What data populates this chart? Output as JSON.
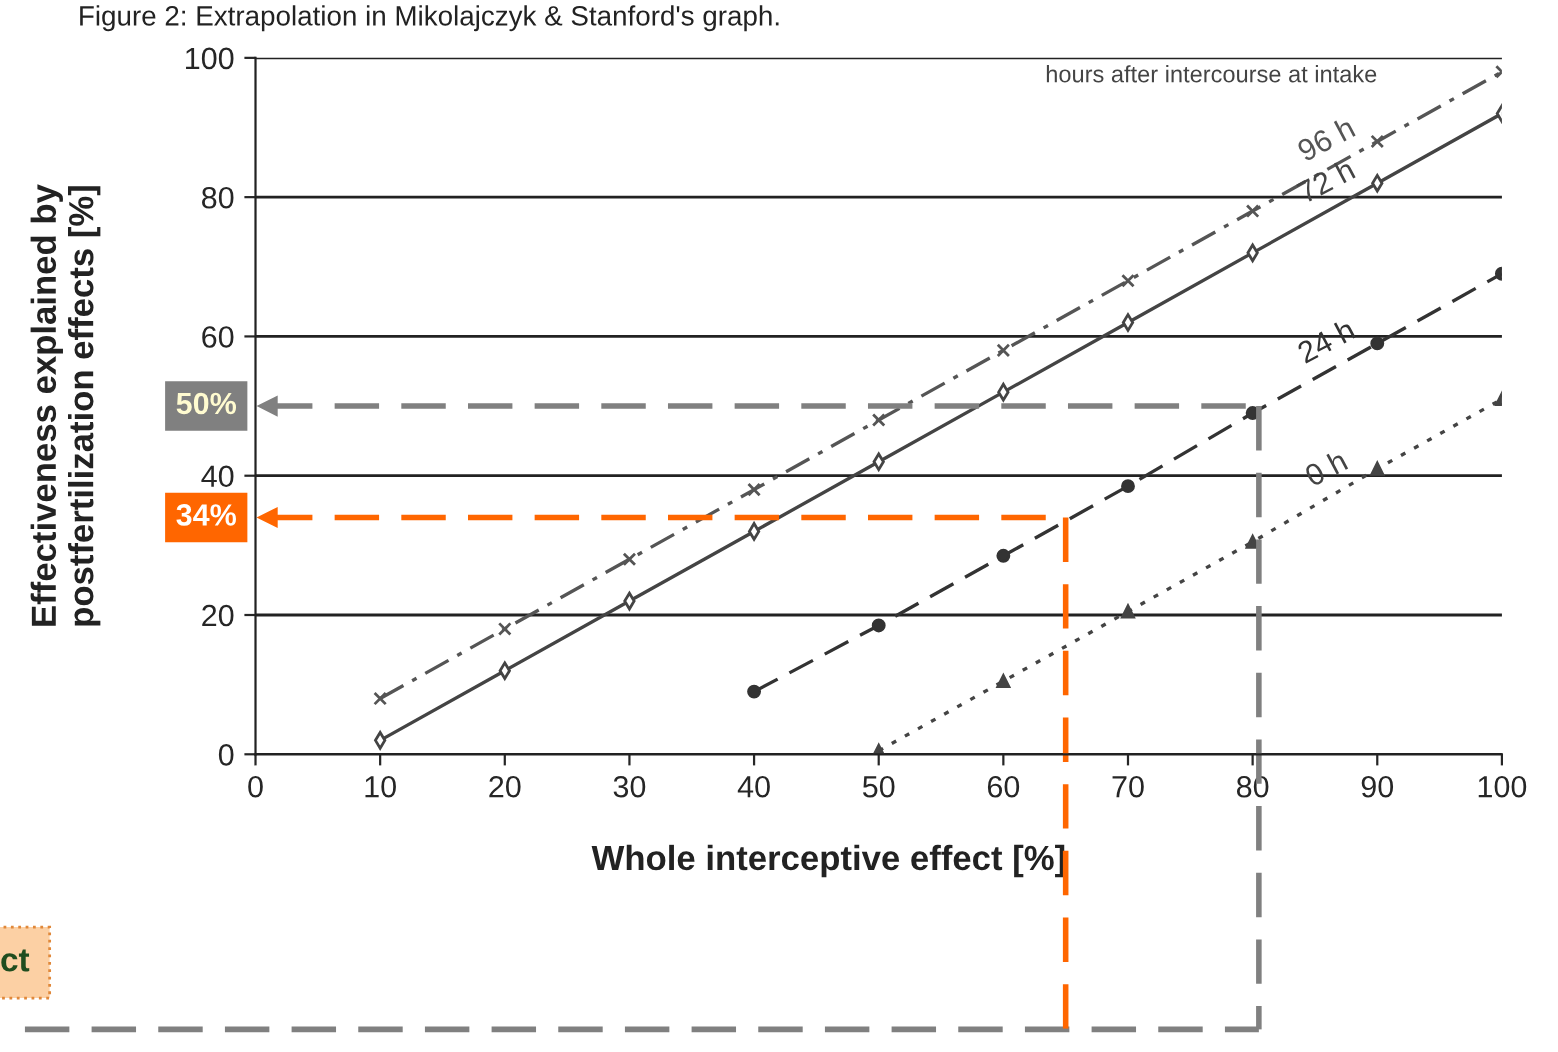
{
  "chart_data": {
    "type": "line",
    "title": "Figure 2: Extrapolation in Mikolajczyk & Stanford's graph.",
    "xlabel": "Whole interceptive effect [%]",
    "ylabel": "Effectiveness explained by\npostfertilization effects [%]",
    "legend_title": "hours after intercourse at intake",
    "xlim": [
      0,
      100
    ],
    "ylim": [
      0,
      100
    ],
    "xticks": [
      0,
      10,
      20,
      30,
      40,
      50,
      60,
      70,
      80,
      90,
      100
    ],
    "yticks": [
      0,
      20,
      40,
      60,
      80,
      100
    ],
    "grid": "y",
    "legend": false,
    "series": [
      {
        "name": "96 h",
        "color": "#555555",
        "marker": "cross",
        "line_style": "dashdot",
        "x": [
          10,
          20,
          30,
          40,
          50,
          60,
          70,
          80,
          90,
          100
        ],
        "values": [
          8,
          18,
          28,
          38,
          48,
          58,
          68,
          78,
          88,
          98
        ]
      },
      {
        "name": "72 h",
        "color": "#444444",
        "marker": "diamond",
        "line_style": "solid",
        "x": [
          10,
          20,
          30,
          40,
          50,
          60,
          70,
          80,
          90,
          100
        ],
        "values": [
          2,
          12,
          22,
          32,
          42,
          52,
          62,
          72,
          82,
          92
        ]
      },
      {
        "name": "24 h",
        "color": "#333333",
        "marker": "circle",
        "line_style": "dashed",
        "x": [
          40,
          50,
          60,
          70,
          80,
          90,
          100
        ],
        "values": [
          9,
          18.5,
          28.5,
          38.5,
          49,
          59,
          69
        ]
      },
      {
        "name": "0 h",
        "color": "#444444",
        "marker": "triangle",
        "line_style": "dotted",
        "x": [
          50,
          60,
          70,
          80,
          90,
          100
        ],
        "values": [
          0.5,
          10.5,
          20.5,
          30.5,
          41,
          51
        ]
      }
    ],
    "ref_lines": [
      {
        "axis": "y",
        "value": 50,
        "label": "50%",
        "color": "#808080",
        "line_style": "dashed"
      },
      {
        "axis": "y",
        "value": 34,
        "label": "34%",
        "color": "#ff6600",
        "line_style": "dashed"
      },
      {
        "axis": "x",
        "value": 80.5,
        "color": "#808080",
        "line_style": "dashed"
      },
      {
        "axis": "x",
        "value": 65,
        "color": "#ff6600",
        "line_style": "dashed"
      }
    ],
    "annotations": [
      "ct"
    ]
  }
}
